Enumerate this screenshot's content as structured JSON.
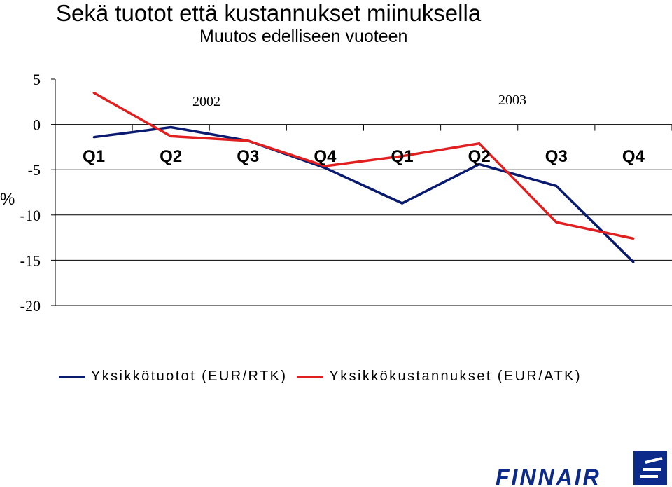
{
  "title": "Sekä tuotot että kustannukset miinuksella",
  "subtitle": "Muutos edelliseen vuoteen",
  "ylabel": "%",
  "year_labels": [
    "2002",
    "2003"
  ],
  "logo_text": "FINNAIR",
  "chart_data": {
    "type": "line",
    "title": "Sekä tuotot että kustannukset miinuksella",
    "subtitle": "Muutos edelliseen vuoteen",
    "ylabel": "%",
    "categories": [
      "Q1",
      "Q2",
      "Q3",
      "Q4",
      "Q1",
      "Q2",
      "Q3",
      "Q4"
    ],
    "category_groups": [
      {
        "label": "2002",
        "span": 4
      },
      {
        "label": "2003",
        "span": 4
      }
    ],
    "ylim": [
      -20,
      5
    ],
    "yticks": [
      "5",
      "0",
      "-5",
      "-10",
      "-15",
      "-20"
    ],
    "grid": "horizontal",
    "legend": "bottom",
    "series": [
      {
        "name": "Yksikkötuotot (EUR/RTK)",
        "color": "#0a1a6e",
        "values": [
          -1.4,
          -0.3,
          -1.8,
          -4.8,
          -8.7,
          -4.4,
          -6.8,
          -15.2
        ]
      },
      {
        "name": "Yksikkökustannukset (EUR/ATK)",
        "color": "#e02020",
        "values": [
          3.5,
          -1.3,
          -1.8,
          -4.6,
          -3.5,
          -2.1,
          -10.8,
          -12.6
        ]
      }
    ]
  }
}
